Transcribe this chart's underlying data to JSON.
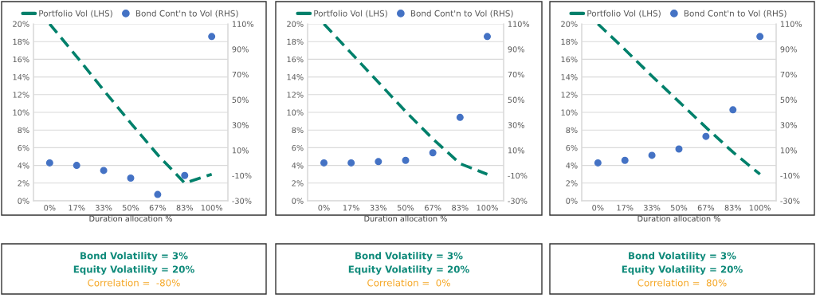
{
  "chart_data": [
    {
      "type": "line",
      "xlabel": "Duration allocation %",
      "categories": [
        "0%",
        "17%",
        "33%",
        "50%",
        "67%",
        "83%",
        "100%"
      ],
      "series": [
        {
          "name": "Portfolio Vol (LHS)",
          "type": "line",
          "color": "#00806b",
          "line_style": "dashed",
          "marker": "none",
          "values": [
            20,
            16.3,
            12.5,
            8.8,
            5.2,
            2.0,
            3.0
          ]
        },
        {
          "name": "Bond Cont'n to Vol (RHS)",
          "type": "scatter",
          "axis": "y2",
          "color": "#4472c4",
          "marker": "circle",
          "values": [
            0,
            -2,
            -6,
            -12,
            -25,
            -10,
            100
          ]
        }
      ],
      "ylim": [
        0,
        20
      ],
      "yticks": [
        {
          "value": 0,
          "label": "0%"
        },
        {
          "value": 2,
          "label": "2%"
        },
        {
          "value": 4,
          "label": "4%"
        },
        {
          "value": 6,
          "label": "6%"
        },
        {
          "value": 8,
          "label": "8%"
        },
        {
          "value": 10,
          "label": "10%"
        },
        {
          "value": 12,
          "label": "12%"
        },
        {
          "value": 14,
          "label": "14%"
        },
        {
          "value": 16,
          "label": "16%"
        },
        {
          "value": 18,
          "label": "18%"
        },
        {
          "value": 20,
          "label": "20%"
        }
      ],
      "y2lim": [
        -30,
        110
      ],
      "y2ticks": [
        {
          "value": -30,
          "label": "-30%"
        },
        {
          "value": -10,
          "label": "-10%"
        },
        {
          "value": 10,
          "label": "10%"
        },
        {
          "value": 30,
          "label": "30%"
        },
        {
          "value": 50,
          "label": "50%"
        },
        {
          "value": 70,
          "label": "70%"
        },
        {
          "value": 90,
          "label": "90%"
        },
        {
          "value": 110,
          "label": "110%"
        }
      ],
      "grid": "y",
      "legend": "top"
    },
    {
      "type": "line",
      "xlabel": "Duration allocation %",
      "categories": [
        "0%",
        "17%",
        "33%",
        "50%",
        "67%",
        "83%",
        "100%"
      ],
      "series": [
        {
          "name": "Portfolio Vol (LHS)",
          "type": "line",
          "color": "#00806b",
          "line_style": "dashed",
          "marker": "none",
          "values": [
            20,
            16.7,
            13.4,
            10.1,
            7.0,
            4.2,
            3.0
          ]
        },
        {
          "name": "Bond Cont'n to Vol (RHS)",
          "type": "scatter",
          "axis": "y2",
          "color": "#4472c4",
          "marker": "circle",
          "values": [
            0,
            0,
            1,
            2,
            8,
            36,
            100
          ]
        }
      ],
      "ylim": [
        0,
        20
      ],
      "yticks": [
        {
          "value": 0,
          "label": "0%"
        },
        {
          "value": 2,
          "label": "2%"
        },
        {
          "value": 4,
          "label": "4%"
        },
        {
          "value": 6,
          "label": "6%"
        },
        {
          "value": 8,
          "label": "8%"
        },
        {
          "value": 10,
          "label": "10%"
        },
        {
          "value": 12,
          "label": "12%"
        },
        {
          "value": 14,
          "label": "14%"
        },
        {
          "value": 16,
          "label": "16%"
        },
        {
          "value": 18,
          "label": "18%"
        },
        {
          "value": 20,
          "label": "20%"
        }
      ],
      "y2lim": [
        -30,
        110
      ],
      "y2ticks": [
        {
          "value": -30,
          "label": "-30%"
        },
        {
          "value": -10,
          "label": "-10%"
        },
        {
          "value": 10,
          "label": "10%"
        },
        {
          "value": 30,
          "label": "30%"
        },
        {
          "value": 50,
          "label": "50%"
        },
        {
          "value": 70,
          "label": "70%"
        },
        {
          "value": 90,
          "label": "90%"
        },
        {
          "value": 110,
          "label": "110%"
        }
      ],
      "grid": "y",
      "legend": "top"
    },
    {
      "type": "line",
      "xlabel": "Duration allocation %",
      "categories": [
        "0%",
        "17%",
        "33%",
        "50%",
        "67%",
        "83%",
        "100%"
      ],
      "series": [
        {
          "name": "Portfolio Vol (LHS)",
          "type": "line",
          "color": "#00806b",
          "line_style": "dashed",
          "marker": "none",
          "values": [
            20,
            17.1,
            14.1,
            11.2,
            8.3,
            5.5,
            3.0
          ]
        },
        {
          "name": "Bond Cont'n to Vol (RHS)",
          "type": "scatter",
          "axis": "y2",
          "color": "#4472c4",
          "marker": "circle",
          "values": [
            0,
            2,
            6,
            11,
            21,
            42,
            100
          ]
        }
      ],
      "ylim": [
        0,
        20
      ],
      "yticks": [
        {
          "value": 0,
          "label": "0%"
        },
        {
          "value": 2,
          "label": "2%"
        },
        {
          "value": 4,
          "label": "4%"
        },
        {
          "value": 6,
          "label": "6%"
        },
        {
          "value": 8,
          "label": "8%"
        },
        {
          "value": 10,
          "label": "10%"
        },
        {
          "value": 12,
          "label": "12%"
        },
        {
          "value": 14,
          "label": "14%"
        },
        {
          "value": 16,
          "label": "16%"
        },
        {
          "value": 18,
          "label": "18%"
        },
        {
          "value": 20,
          "label": "20%"
        }
      ],
      "y2lim": [
        -30,
        110
      ],
      "y2ticks": [
        {
          "value": -30,
          "label": "-30%"
        },
        {
          "value": -10,
          "label": "-10%"
        },
        {
          "value": 10,
          "label": "10%"
        },
        {
          "value": 30,
          "label": "30%"
        },
        {
          "value": 50,
          "label": "50%"
        },
        {
          "value": 70,
          "label": "70%"
        },
        {
          "value": 90,
          "label": "90%"
        },
        {
          "value": 110,
          "label": "110%"
        }
      ],
      "grid": "y",
      "legend": "top"
    },
    {
      "type": "other",
      "annotations": [
        "Bond Volatility = 3%",
        "Equity Volatility = 20%",
        "Correlation =  -80%"
      ],
      "colors": [
        "#0f8a7a",
        "#0f8a7a",
        "#f5a623"
      ]
    },
    {
      "type": "other",
      "annotations": [
        "Bond Volatility = 3%",
        "Equity Volatility = 20%",
        "Correlation =  0%"
      ],
      "colors": [
        "#0f8a7a",
        "#0f8a7a",
        "#f5a623"
      ]
    },
    {
      "type": "other",
      "annotations": [
        "Bond Volatility = 3%",
        "Equity Volatility = 20%",
        "Correlation =  80%"
      ],
      "colors": [
        "#0f8a7a",
        "#0f8a7a",
        "#f5a623"
      ]
    }
  ]
}
